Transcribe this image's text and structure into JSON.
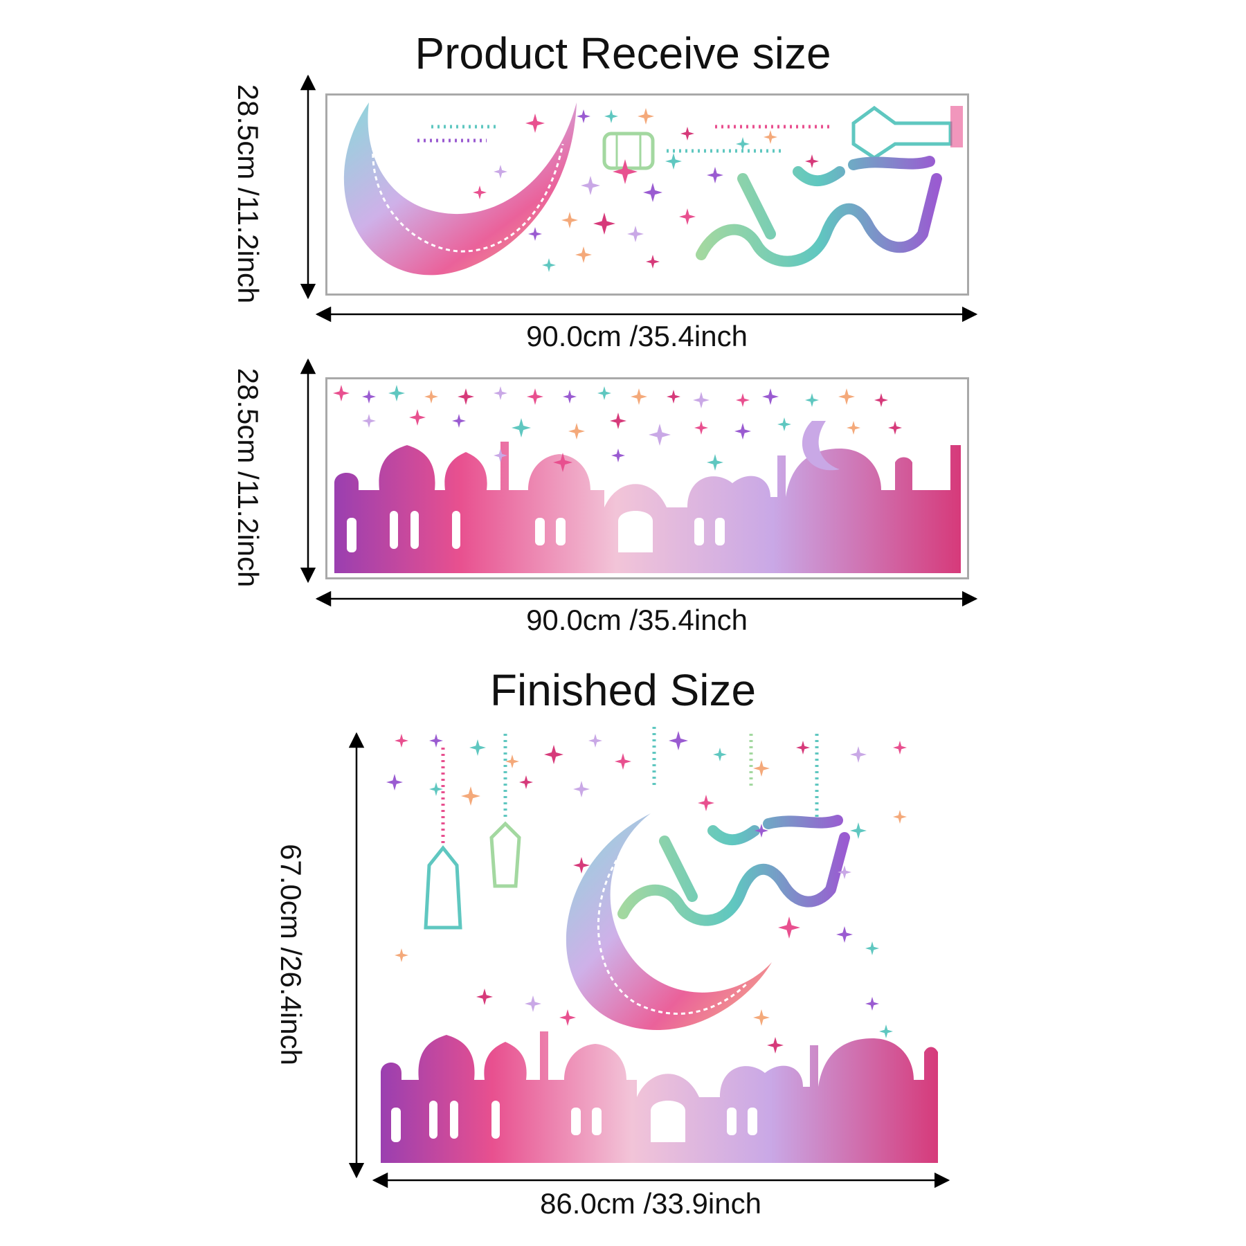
{
  "top_title": "Product Receive size",
  "finished_title": "Finished Size",
  "panel1": {
    "width_label": "90.0cm /35.4inch",
    "height_label": "28.5cm /11.2inch"
  },
  "panel2": {
    "width_label": "90.0cm /35.4inch",
    "height_label": "28.5cm /11.2inch"
  },
  "finished": {
    "width_label": "86.0cm /33.9inch",
    "height_label": "67.0cm /26.4inch"
  },
  "colors": {
    "pink": "#e8508f",
    "violet": "#9a5bd1",
    "teal": "#5fc7c0",
    "peach": "#f4a97a",
    "magenta": "#d63a7a",
    "lavender": "#c9a8e6"
  }
}
